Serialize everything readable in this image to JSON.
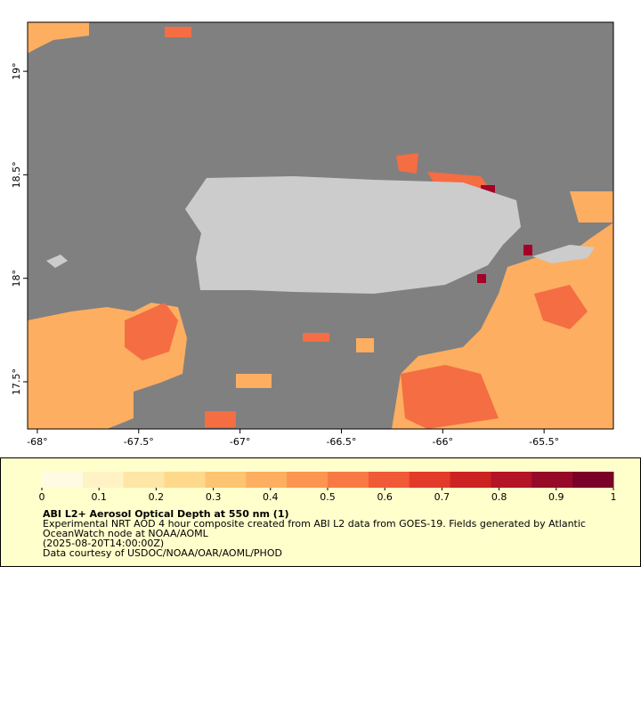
{
  "map": {
    "xlim": [
      -68.048,
      -65.158
    ],
    "ylim": [
      17.272,
      19.237
    ],
    "xticks": [
      {
        "value": -68,
        "label": "-68°"
      },
      {
        "value": -67.5,
        "label": "-67.5°"
      },
      {
        "value": -67,
        "label": "-67°"
      },
      {
        "value": -66.5,
        "label": "-66.5°"
      },
      {
        "value": -66,
        "label": "-66°"
      },
      {
        "value": -65.5,
        "label": "-65.5°"
      }
    ],
    "yticks": [
      {
        "value": 17.5,
        "label": "17.5°"
      },
      {
        "value": 18,
        "label": "18°"
      },
      {
        "value": 18.5,
        "label": "18.5°"
      },
      {
        "value": 19,
        "label": "19°"
      }
    ]
  },
  "colorbar": {
    "range": [
      0,
      1
    ],
    "ticks": [
      0,
      0.1,
      0.2,
      0.3,
      0.4,
      0.5,
      0.6,
      0.7,
      0.8,
      0.9,
      1
    ],
    "colors": [
      "#fffbe3",
      "#fff2c4",
      "#fee6a6",
      "#fed98b",
      "#fdc472",
      "#fdae61",
      "#fb9550",
      "#f77a44",
      "#f05a37",
      "#e23b2a",
      "#cc2222",
      "#b31426",
      "#960a28",
      "#7a0227"
    ]
  },
  "legend": {
    "title": "ABI L2+ Aerosol Optical Depth at 550 nm (1)",
    "lines": [
      "Experimental NRT AOD 4 hour composite created from ABI L2 data from GOES-19. Fields generated by Atlantic",
      "OceanWatch node at NOAA/AOML",
      "(2025-08-20T14:00:00Z)",
      "Data courtesy of USDOC/NOAA/OAR/AOML/PHOD"
    ]
  }
}
